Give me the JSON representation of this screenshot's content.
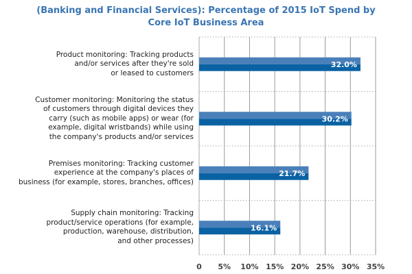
{
  "chart_data": {
    "type": "bar",
    "orientation": "horizontal",
    "title": "(Banking and Financial Services): Percentage of 2015 IoT Spend by Core IoT Business Area",
    "title_lines": [
      "(Banking and Financial Services): Percentage of 2015 IoT Spend by",
      "Core IoT Business Area"
    ],
    "categories": [
      "Product monitoring: Tracking products and/or services after they're sold or leased to customers",
      "Customer monitoring: Monitoring the status of customers through digital devices they carry (such as mobile apps) or wear (for example, digital wristbands) while using the company's products and/or services",
      "Premises monitoring: Tracking customer experience at the company's places of business (for example, stores, branches, offices)",
      "Supply chain monitoring: Tracking product/service operations (for example, production, warehouse, distribution, and other processes)"
    ],
    "category_lines": [
      [
        "Product monitoring: Tracking products",
        "and/or services after they're sold",
        "or leased to customers"
      ],
      [
        "Customer monitoring: Monitoring the status",
        "of customers through digital devices they",
        "carry (such as mobile apps) or wear (for",
        "example, digital wristbands) while using",
        "the company's products and/or services"
      ],
      [
        "Premises monitoring: Tracking customer",
        "experience at the company's places of",
        "business (for example, stores, branches, offices)"
      ],
      [
        "Supply chain monitoring: Tracking",
        "product/service operations (for example,",
        "production, warehouse, distribution,",
        "and other processes)"
      ]
    ],
    "values": [
      32.0,
      30.2,
      21.7,
      16.1
    ],
    "data_labels": [
      "32.0%",
      "30.2%",
      "21.7%",
      "16.1%"
    ],
    "xlim": [
      0,
      35
    ],
    "x_ticks": [
      0,
      5,
      10,
      15,
      20,
      25,
      30,
      35
    ],
    "x_tick_labels": [
      "0",
      "5%",
      "10%",
      "15%",
      "20%",
      "25%",
      "30%",
      "35%"
    ],
    "grid": "vertical",
    "colors": {
      "title": "#3a75b3",
      "bar_top": "#4a80ba",
      "bar_bottom": "#0a62a3",
      "grid": "#999999"
    }
  }
}
